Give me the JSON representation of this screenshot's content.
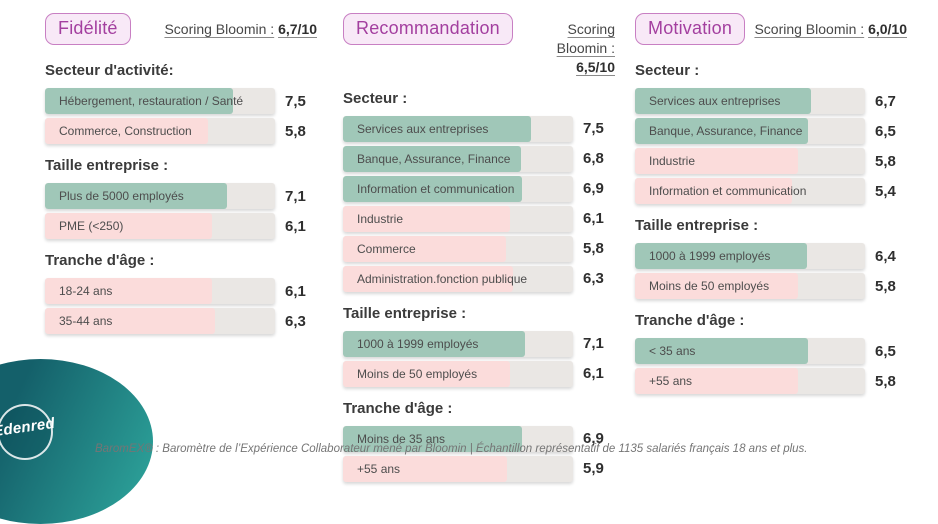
{
  "colors": {
    "positive": "#a0c7b8",
    "negative": "#fbdcdb",
    "track": "#eae7e4",
    "badge_text": "#a33f9f",
    "badge_background": "#f8e9f7",
    "badge_border": "#c87fc3"
  },
  "footer": {
    "caption": "BaromEX® : Baromètre de l’Expérience Collaborateur mené par Bloomin | Échantillon représentatif de 1135 salariés français 18 ans et plus.",
    "logo_text": "Edenred"
  },
  "chart_data": [
    {
      "type": "bar",
      "title": "Fidélité",
      "scoring": {
        "label": "Scoring Bloomin :",
        "value": "6,7/10"
      },
      "xlim": [
        0,
        10
      ],
      "groups": [
        {
          "heading": "Secteur d'activité:",
          "bars": [
            {
              "label": "Hébergement, restauration / Santé",
              "value": 7.5,
              "sentiment": "positive"
            },
            {
              "label": "Commerce, Construction",
              "value": 5.8,
              "sentiment": "negative"
            }
          ]
        },
        {
          "heading": "Taille entreprise :",
          "bars": [
            {
              "label": "Plus de 5000 employés",
              "value": 7.1,
              "sentiment": "positive"
            },
            {
              "label": "PME (<250)",
              "value": 6.1,
              "sentiment": "negative"
            }
          ]
        },
        {
          "heading": "Tranche d'âge :",
          "bars": [
            {
              "label": "18-24 ans",
              "value": 6.1,
              "sentiment": "negative"
            },
            {
              "label": "35-44 ans",
              "value": 6.3,
              "sentiment": "negative"
            }
          ]
        }
      ]
    },
    {
      "type": "bar",
      "title": "Recommandation",
      "scoring": {
        "label": "Scoring Bloomin :",
        "value": "6,5/10"
      },
      "xlim": [
        0,
        10
      ],
      "groups": [
        {
          "heading": "Secteur :",
          "bars": [
            {
              "label": "Services aux entreprises",
              "value": 7.5,
              "sentiment": "positive"
            },
            {
              "label": "Banque, Assurance, Finance",
              "value": 6.8,
              "sentiment": "positive"
            },
            {
              "label": "Information et communication",
              "value": 6.9,
              "sentiment": "positive"
            },
            {
              "label": "Industrie",
              "value": 6.1,
              "sentiment": "negative"
            },
            {
              "label": "Commerce",
              "value": 5.8,
              "sentiment": "negative"
            },
            {
              "label": "Administration.fonction publique",
              "value": 6.3,
              "sentiment": "negative"
            }
          ]
        },
        {
          "heading": "Taille entreprise :",
          "bars": [
            {
              "label": "1000 à 1999 employés",
              "value": 7.1,
              "sentiment": "positive"
            },
            {
              "label": "Moins de 50 employés",
              "value": 6.1,
              "sentiment": "negative"
            }
          ]
        },
        {
          "heading": "Tranche d'âge :",
          "bars": [
            {
              "label": "Moins de 35 ans",
              "value": 6.9,
              "sentiment": "positive"
            },
            {
              "label": "+55 ans",
              "value": 5.9,
              "sentiment": "negative"
            }
          ]
        }
      ]
    },
    {
      "type": "bar",
      "title": "Motivation",
      "scoring": {
        "label": "Scoring Bloomin :",
        "value": "6,0/10"
      },
      "xlim": [
        0,
        10
      ],
      "groups": [
        {
          "heading": "Secteur :",
          "bars": [
            {
              "label": "Services aux entreprises",
              "value": 6.7,
              "sentiment": "positive"
            },
            {
              "label": "Banque, Assurance, Finance",
              "value": 6.5,
              "sentiment": "positive"
            },
            {
              "label": "Industrie",
              "value": 5.8,
              "sentiment": "negative"
            },
            {
              "label": "Information et communication",
              "value": 5.4,
              "sentiment": "negative"
            }
          ]
        },
        {
          "heading": "Taille entreprise :",
          "bars": [
            {
              "label": "1000 à 1999 employés",
              "value": 6.4,
              "sentiment": "positive"
            },
            {
              "label": "Moins de 50 employés",
              "value": 5.8,
              "sentiment": "negative"
            }
          ]
        },
        {
          "heading": "Tranche d'âge :",
          "bars": [
            {
              "label": "< 35 ans",
              "value": 6.5,
              "sentiment": "positive"
            },
            {
              "label": "+55 ans",
              "value": 5.8,
              "sentiment": "negative"
            }
          ]
        }
      ]
    }
  ]
}
